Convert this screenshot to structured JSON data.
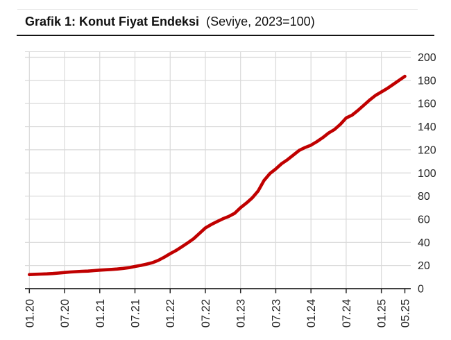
{
  "header": {
    "title": "Grafik 1: Konut Fiyat Endeksi",
    "subtitle": "(Seviye, 2023=100)"
  },
  "colors": {
    "line": "#c00000",
    "grid": "#d9d9d9",
    "axis": "#262626",
    "tick_text": "#262626",
    "title_text": "#111111"
  },
  "chart_data": {
    "type": "line",
    "title": "Grafik 1: Konut Fiyat Endeksi",
    "subtitle": "(Seviye, 2023=100)",
    "x_unit": "month",
    "x_start": "2020-01",
    "x_end": "2025-05",
    "x_tick_labels": [
      "01.20",
      "07.20",
      "01.21",
      "07.21",
      "01.22",
      "07.22",
      "01.23",
      "07.23",
      "01.24",
      "07.24",
      "01.25",
      "05.25"
    ],
    "x_tick_month_index": [
      0,
      6,
      12,
      18,
      24,
      30,
      36,
      42,
      48,
      54,
      60,
      64
    ],
    "y_ticks": [
      0,
      20,
      40,
      60,
      80,
      100,
      120,
      140,
      160,
      180,
      200
    ],
    "ylim": [
      0,
      200
    ],
    "grid": true,
    "legend_position": "none",
    "y_axis_side": "right",
    "series": [
      {
        "name": "Konut Fiyat Endeksi",
        "color": "#c00000",
        "monthly_values": [
          12.2,
          12.4,
          12.6,
          12.8,
          13.1,
          13.5,
          14.0,
          14.4,
          14.7,
          15.0,
          15.2,
          15.6,
          16.0,
          16.3,
          16.6,
          17.0,
          17.5,
          18.2,
          19.2,
          20.1,
          21.2,
          22.5,
          24.5,
          27.2,
          30.2,
          33.0,
          36.2,
          39.6,
          43.2,
          47.8,
          52.5,
          55.4,
          58.0,
          60.4,
          62.4,
          65.2,
          70.0,
          74.0,
          78.5,
          84.5,
          93.5,
          99.5,
          103.5,
          108.0,
          111.5,
          115.5,
          119.5,
          122.0,
          124.0,
          127.0,
          130.5,
          134.5,
          137.5,
          142.0,
          147.5,
          150.0,
          154.0,
          158.5,
          163.0,
          167.0,
          170.0,
          173.0,
          176.5,
          180.0,
          183.5
        ]
      }
    ]
  }
}
